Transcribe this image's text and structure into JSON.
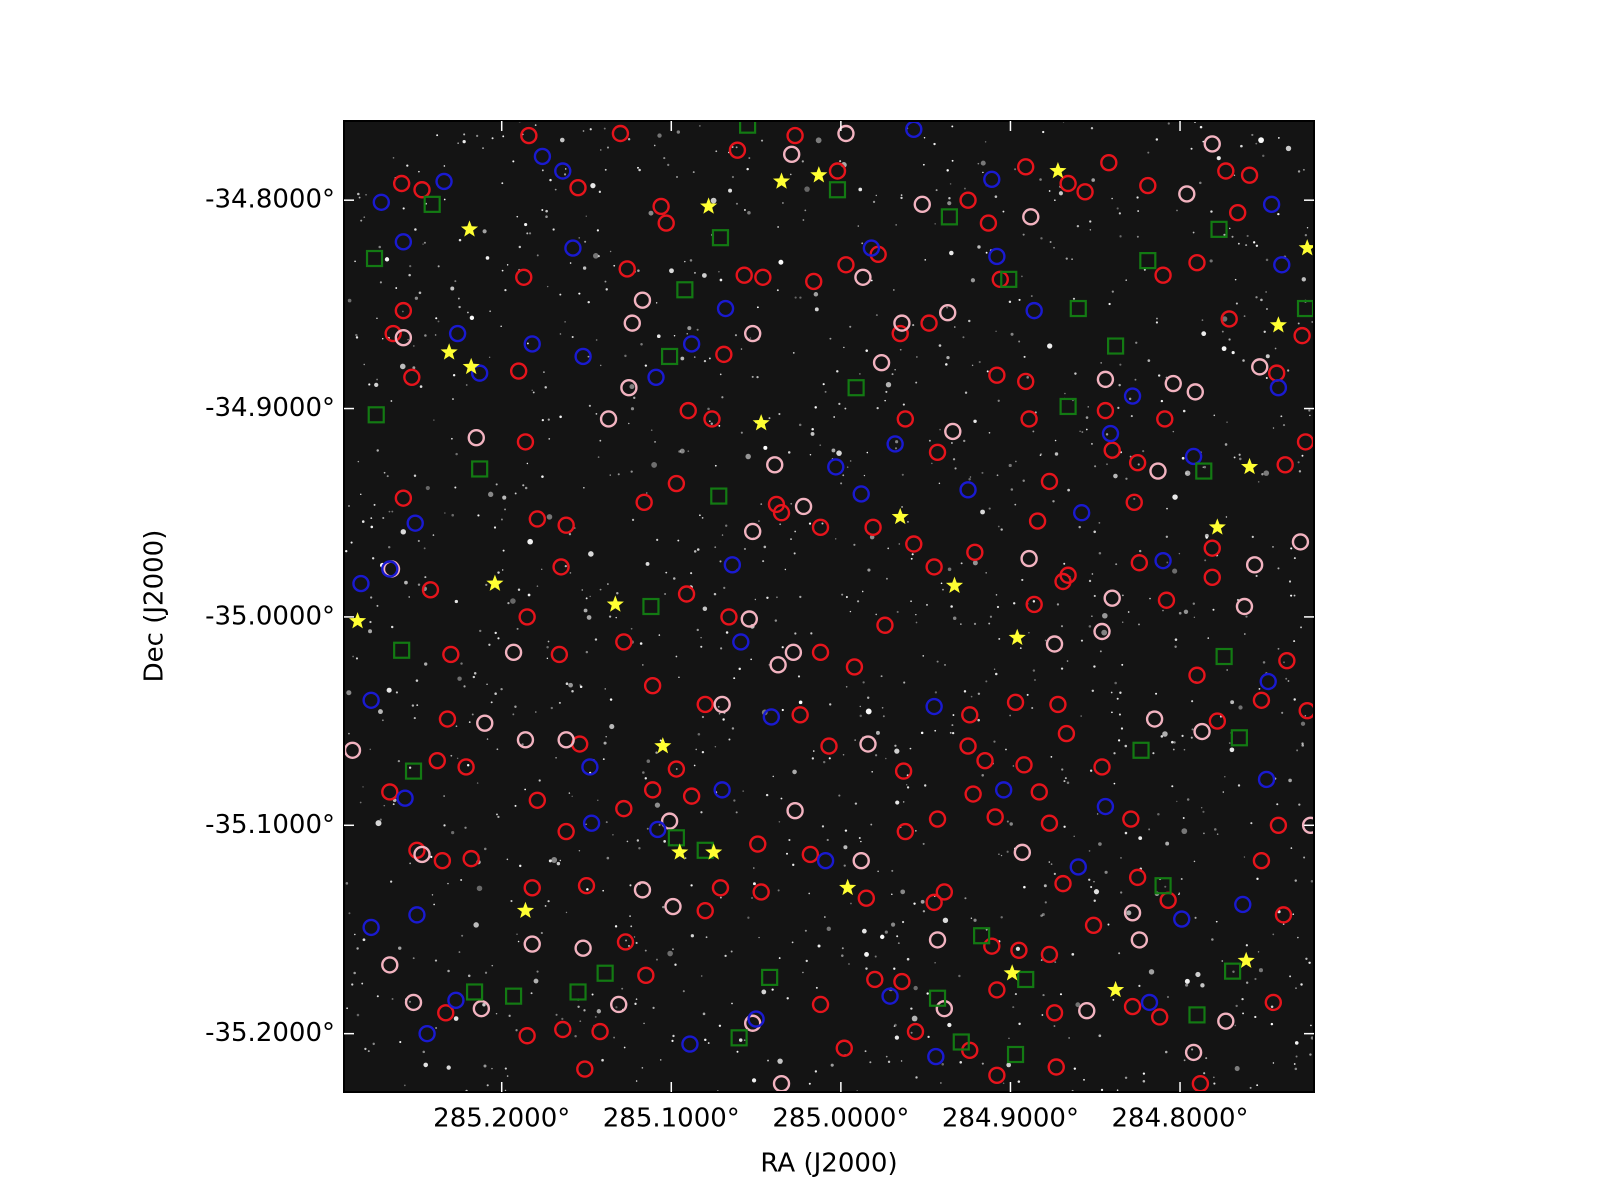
{
  "chart_data": {
    "type": "scatter",
    "xlabel": "RA (J2000)",
    "ylabel": "Dec (J2000)",
    "xlim": [
      285.293,
      284.721
    ],
    "ylim": [
      -35.228,
      -34.762
    ],
    "xticks": [
      {
        "value": 285.2,
        "label": "285.2000°"
      },
      {
        "value": 285.1,
        "label": "285.1000°"
      },
      {
        "value": 285.0,
        "label": "285.0000°"
      },
      {
        "value": 284.9,
        "label": "284.9000°"
      },
      {
        "value": 284.8,
        "label": "284.8000°"
      }
    ],
    "yticks": [
      {
        "value": -34.8,
        "label": "-34.8000°"
      },
      {
        "value": -34.9,
        "label": "-34.9000°"
      },
      {
        "value": -35.0,
        "label": "-35.0000°"
      },
      {
        "value": -35.1,
        "label": "-35.1000°"
      },
      {
        "value": -35.2,
        "label": "-35.2000°"
      }
    ],
    "background": "#141414",
    "series": [
      {
        "color": "#e6141c",
        "marker": "circle",
        "x": [
          285.259,
          285.247,
          285.258,
          285.264,
          285.253,
          285.258,
          285.242,
          285.23,
          285.232,
          285.238,
          285.221,
          285.266,
          285.25,
          285.235,
          285.218,
          285.233,
          285.187,
          285.184,
          285.155,
          285.19,
          285.186,
          285.179,
          285.162,
          285.185,
          285.165,
          285.166,
          285.154,
          285.179,
          285.162,
          285.182,
          285.15,
          285.127,
          285.115,
          285.185,
          285.164,
          285.142,
          285.151,
          285.126,
          285.103,
          285.069,
          285.057,
          285.046,
          285.076,
          285.09,
          285.097,
          285.116,
          285.128,
          285.091,
          285.066,
          285.111,
          285.08,
          285.097,
          285.111,
          285.128,
          285.088,
          285.071,
          285.08,
          285.047,
          285.049,
          285.018,
          285.012,
          284.998,
          284.98,
          284.956,
          284.964,
          284.985,
          284.962,
          284.963,
          284.974,
          284.992,
          285.007,
          285.024,
          285.012,
          285.038,
          285.035,
          285.012,
          284.981,
          284.957,
          284.945,
          284.962,
          284.965,
          284.948,
          284.978,
          284.997,
          285.016,
          285.002,
          285.027,
          285.061,
          285.13,
          285.106,
          284.925,
          284.913,
          284.906,
          284.891,
          284.866,
          284.856,
          284.842,
          284.819,
          284.81,
          284.79,
          284.773,
          284.766,
          284.759,
          284.771,
          284.743,
          284.728,
          284.738,
          284.726,
          284.781,
          284.781,
          284.808,
          284.824,
          284.778,
          284.79,
          284.752,
          284.737,
          284.725,
          284.742,
          284.752,
          284.739,
          284.745,
          284.788,
          284.812,
          284.828,
          284.825,
          284.807,
          284.829,
          284.846,
          284.867,
          284.872,
          284.883,
          284.892,
          284.877,
          284.909,
          284.915,
          284.925,
          284.922,
          284.943,
          284.939,
          284.945,
          284.911,
          284.895,
          284.877,
          284.874,
          284.873,
          284.851,
          284.869,
          284.908,
          284.924,
          284.908,
          284.924,
          284.897,
          284.886,
          284.869,
          284.866,
          284.921,
          284.884,
          284.889,
          284.877,
          284.891,
          284.908,
          284.943,
          284.844,
          284.84,
          284.825,
          284.809,
          284.827
        ],
        "y": [
          -34.792,
          -34.795,
          -34.853,
          -34.864,
          -34.885,
          -34.943,
          -34.987,
          -35.018,
          -35.049,
          -35.069,
          -35.072,
          -35.084,
          -35.112,
          -35.117,
          -35.116,
          -35.19,
          -34.837,
          -34.769,
          -34.794,
          -34.882,
          -34.916,
          -34.953,
          -34.956,
          -35.0,
          -34.976,
          -35.018,
          -35.061,
          -35.088,
          -35.103,
          -35.13,
          -35.129,
          -35.156,
          -35.172,
          -35.201,
          -35.198,
          -35.199,
          -35.217,
          -34.833,
          -34.811,
          -34.874,
          -34.836,
          -34.837,
          -34.905,
          -34.901,
          -34.936,
          -34.945,
          -35.012,
          -34.989,
          -35.0,
          -35.033,
          -35.042,
          -35.073,
          -35.083,
          -35.092,
          -35.086,
          -35.13,
          -35.141,
          -35.132,
          -35.109,
          -35.114,
          -35.186,
          -35.207,
          -35.174,
          -35.199,
          -35.175,
          -35.135,
          -35.103,
          -35.074,
          -35.004,
          -35.024,
          -35.062,
          -35.047,
          -35.017,
          -34.946,
          -34.95,
          -34.957,
          -34.957,
          -34.965,
          -34.976,
          -34.905,
          -34.864,
          -34.859,
          -34.826,
          -34.831,
          -34.839,
          -34.786,
          -34.769,
          -34.776,
          -34.768,
          -34.803,
          -34.8,
          -34.811,
          -34.838,
          -34.784,
          -34.792,
          -34.796,
          -34.782,
          -34.793,
          -34.836,
          -34.83,
          -34.786,
          -34.806,
          -34.788,
          -34.857,
          -34.883,
          -34.865,
          -34.927,
          -34.916,
          -34.981,
          -34.967,
          -34.992,
          -34.974,
          -35.05,
          -35.028,
          -35.04,
          -35.021,
          -35.045,
          -35.1,
          -35.117,
          -35.143,
          -35.185,
          -35.224,
          -35.192,
          -35.187,
          -35.125,
          -35.136,
          -35.097,
          -35.072,
          -35.056,
          -35.042,
          -35.084,
          -35.071,
          -35.099,
          -35.096,
          -35.069,
          -35.062,
          -35.085,
          -35.097,
          -35.132,
          -35.137,
          -35.158,
          -35.16,
          -35.162,
          -35.19,
          -35.216,
          -35.148,
          -35.128,
          -35.22,
          -35.208,
          -35.179,
          -35.047,
          -35.041,
          -34.994,
          -34.983,
          -34.98,
          -34.969,
          -34.954,
          -34.905,
          -34.935,
          -34.887,
          -34.884,
          -34.921,
          -34.901,
          -34.92,
          -34.926,
          -34.905,
          -34.945
        ]
      },
      {
        "color": "#f2b3c0",
        "marker": "circle",
        "x": [
          285.258,
          285.265,
          285.215,
          285.193,
          285.186,
          285.162,
          285.21,
          285.247,
          285.266,
          285.252,
          285.212,
          285.182,
          285.152,
          285.131,
          285.099,
          285.117,
          285.101,
          285.07,
          285.054,
          285.028,
          285.037,
          285.052,
          285.022,
          285.039,
          285.137,
          285.125,
          285.123,
          285.117,
          285.052,
          284.997,
          285.029,
          284.987,
          284.964,
          284.976,
          284.952,
          284.937,
          284.934,
          284.889,
          284.874,
          284.846,
          284.84,
          284.815,
          284.787,
          284.762,
          284.756,
          284.729,
          284.753,
          284.791,
          284.804,
          284.844,
          284.813,
          284.781,
          284.796,
          284.888,
          284.773,
          284.792,
          284.855,
          284.828,
          284.824,
          284.893,
          284.943,
          284.939,
          284.988,
          284.984,
          285.027,
          285.052,
          285.035,
          285.288,
          284.723
        ],
        "y": [
          -34.866,
          -34.977,
          -34.914,
          -35.017,
          -35.059,
          -35.059,
          -35.051,
          -35.114,
          -35.167,
          -35.185,
          -35.188,
          -35.157,
          -35.159,
          -35.186,
          -35.139,
          -35.131,
          -35.098,
          -35.042,
          -35.001,
          -35.017,
          -35.023,
          -34.959,
          -34.947,
          -34.927,
          -34.905,
          -34.89,
          -34.859,
          -34.848,
          -34.864,
          -34.768,
          -34.778,
          -34.837,
          -34.859,
          -34.878,
          -34.802,
          -34.854,
          -34.911,
          -34.972,
          -35.013,
          -35.007,
          -34.991,
          -35.049,
          -35.055,
          -34.995,
          -34.975,
          -34.964,
          -34.88,
          -34.892,
          -34.888,
          -34.886,
          -34.93,
          -34.773,
          -34.797,
          -34.808,
          -35.194,
          -35.209,
          -35.189,
          -35.142,
          -35.155,
          -35.113,
          -35.155,
          -35.188,
          -35.117,
          -35.061,
          -35.093,
          -35.195,
          -35.224,
          -35.064,
          -35.1
        ]
      },
      {
        "color": "#1a1ad0",
        "marker": "circle",
        "x": [
          285.271,
          285.258,
          285.234,
          285.226,
          285.213,
          285.182,
          285.152,
          285.158,
          285.176,
          285.164,
          285.251,
          285.266,
          285.283,
          285.277,
          285.257,
          285.25,
          285.277,
          285.244,
          285.227,
          285.148,
          285.147,
          285.109,
          285.088,
          285.068,
          285.064,
          285.059,
          285.041,
          285.003,
          284.988,
          284.968,
          284.925,
          284.911,
          284.908,
          284.886,
          284.828,
          284.841,
          284.858,
          284.81,
          284.792,
          284.746,
          284.74,
          284.742,
          284.748,
          284.749,
          284.763,
          284.799,
          284.818,
          284.844,
          284.86,
          284.904,
          284.945,
          284.971,
          284.944,
          285.05,
          285.009,
          285.089,
          285.108,
          285.07,
          284.982,
          284.957
        ],
        "y": [
          -34.801,
          -34.82,
          -34.791,
          -34.864,
          -34.883,
          -34.869,
          -34.875,
          -34.823,
          -34.779,
          -34.786,
          -34.955,
          -34.977,
          -34.984,
          -35.04,
          -35.087,
          -35.143,
          -35.149,
          -35.2,
          -35.184,
          -35.072,
          -35.099,
          -34.885,
          -34.869,
          -34.852,
          -34.975,
          -35.012,
          -35.048,
          -34.928,
          -34.941,
          -34.917,
          -34.939,
          -34.79,
          -34.827,
          -34.853,
          -34.894,
          -34.912,
          -34.95,
          -34.973,
          -34.923,
          -34.802,
          -34.831,
          -34.89,
          -35.031,
          -35.078,
          -35.138,
          -35.145,
          -35.185,
          -35.091,
          -35.12,
          -35.083,
          -35.043,
          -35.182,
          -35.211,
          -35.193,
          -35.117,
          -35.205,
          -35.102,
          -35.083,
          -34.823,
          -34.766
        ]
      },
      {
        "color": "#137a13",
        "marker": "square",
        "x": [
          285.241,
          285.275,
          285.274,
          285.213,
          285.259,
          285.252,
          285.216,
          285.193,
          285.155,
          285.139,
          285.112,
          285.101,
          285.092,
          285.071,
          285.072,
          285.097,
          285.08,
          285.06,
          285.042,
          285.055,
          285.002,
          284.991,
          284.936,
          284.901,
          284.86,
          284.838,
          284.866,
          284.819,
          284.777,
          284.786,
          284.774,
          284.823,
          284.765,
          284.726,
          284.81,
          284.917,
          284.891,
          284.943,
          284.929,
          284.897,
          284.79,
          284.769
        ],
        "y": [
          -34.802,
          -34.828,
          -34.903,
          -34.929,
          -35.016,
          -35.074,
          -35.18,
          -35.182,
          -35.18,
          -35.171,
          -34.995,
          -34.875,
          -34.843,
          -34.818,
          -34.942,
          -35.106,
          -35.112,
          -35.202,
          -35.173,
          -34.764,
          -34.795,
          -34.89,
          -34.808,
          -34.838,
          -34.852,
          -34.87,
          -34.899,
          -34.829,
          -34.814,
          -34.93,
          -35.019,
          -35.064,
          -35.058,
          -34.852,
          -35.129,
          -35.153,
          -35.174,
          -35.183,
          -35.204,
          -35.21,
          -35.191,
          -35.17
        ]
      },
      {
        "color": "#ffff33",
        "marker": "star",
        "x": [
          285.219,
          285.231,
          285.218,
          285.078,
          285.035,
          285.013,
          284.872,
          284.725,
          284.742,
          285.047,
          284.759,
          284.778,
          284.965,
          284.933,
          285.204,
          285.133,
          285.285,
          284.896,
          285.105,
          285.095,
          285.075,
          284.996,
          285.186,
          284.899,
          284.838,
          284.761
        ],
        "y": [
          -34.814,
          -34.873,
          -34.88,
          -34.803,
          -34.791,
          -34.788,
          -34.786,
          -34.823,
          -34.86,
          -34.907,
          -34.928,
          -34.957,
          -34.952,
          -34.985,
          -34.984,
          -34.994,
          -35.002,
          -35.01,
          -35.062,
          -35.113,
          -35.113,
          -35.13,
          -35.141,
          -35.171,
          -35.179,
          -35.165
        ]
      }
    ]
  }
}
